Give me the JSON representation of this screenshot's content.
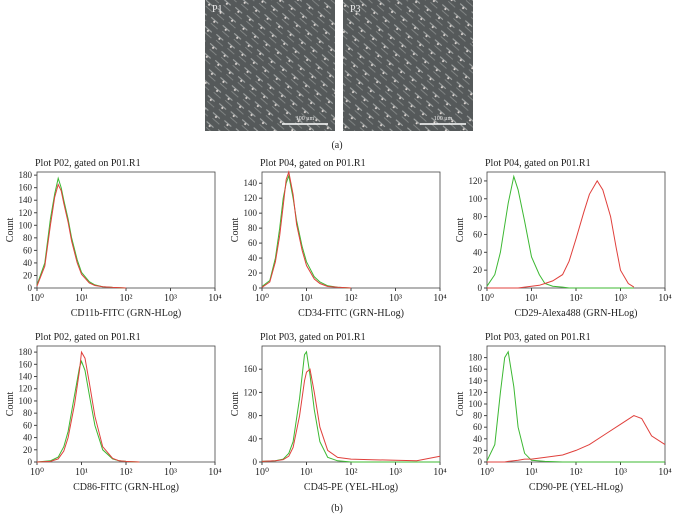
{
  "panel_a": {
    "images": [
      {
        "label": "P1",
        "scale": "100 μm"
      },
      {
        "label": "P3",
        "scale": "100 μm"
      }
    ],
    "caption": "(a)"
  },
  "panel_b": {
    "caption": "(b)"
  },
  "chart_data": [
    {
      "type": "line",
      "title": "Plot P02, gated on P01.R1",
      "x_label": "CD11b-FITC (GRN-HLog)",
      "y_label": "Count",
      "log_x": true,
      "x": [
        1,
        1.5,
        2,
        2.5,
        3,
        3.5,
        4,
        5,
        6,
        8,
        10,
        15,
        20,
        30,
        50,
        100
      ],
      "series": [
        {
          "color": "#3cb832",
          "values": [
            5,
            40,
            110,
            150,
            175,
            160,
            140,
            110,
            80,
            45,
            25,
            10,
            5,
            2,
            1,
            0
          ]
        },
        {
          "color": "#e0403c",
          "values": [
            3,
            35,
            100,
            145,
            165,
            155,
            135,
            105,
            75,
            40,
            22,
            8,
            4,
            2,
            1,
            0
          ]
        }
      ],
      "xlim": [
        1,
        10000
      ],
      "xticks": [
        {
          "value": 1,
          "label": "10⁰"
        },
        {
          "value": 10,
          "label": "10¹"
        },
        {
          "value": 100,
          "label": "10²"
        },
        {
          "value": 1000,
          "label": "10³"
        },
        {
          "value": 10000,
          "label": "10⁴"
        }
      ],
      "ylim": [
        0,
        185
      ],
      "yticks": [
        0,
        20,
        40,
        60,
        80,
        100,
        120,
        140,
        160,
        180
      ]
    },
    {
      "type": "line",
      "title": "Plot P04, gated on P01.R1",
      "x_label": "CD34-FITC (GRN-HLog)",
      "y_label": "Count",
      "log_x": true,
      "x": [
        1,
        1.5,
        2,
        2.5,
        3,
        3.5,
        4,
        5,
        6,
        8,
        10,
        15,
        20,
        30,
        50,
        100
      ],
      "series": [
        {
          "color": "#3cb832",
          "values": [
            2,
            10,
            40,
            80,
            120,
            140,
            150,
            120,
            90,
            55,
            35,
            15,
            8,
            3,
            1,
            0
          ]
        },
        {
          "color": "#e0403c",
          "values": [
            1,
            8,
            35,
            70,
            110,
            145,
            155,
            125,
            85,
            50,
            30,
            12,
            6,
            2,
            1,
            0
          ]
        }
      ],
      "xlim": [
        1,
        10000
      ],
      "xticks": [
        {
          "value": 1,
          "label": "10⁰"
        },
        {
          "value": 10,
          "label": "10¹"
        },
        {
          "value": 100,
          "label": "10²"
        },
        {
          "value": 1000,
          "label": "10³"
        },
        {
          "value": 10000,
          "label": "10⁴"
        }
      ],
      "ylim": [
        0,
        155
      ],
      "yticks": [
        0,
        20,
        40,
        60,
        80,
        100,
        120,
        140
      ]
    },
    {
      "type": "line",
      "title": "Plot P04, gated on P01.R1",
      "x_label": "CD29-Alexa488 (GRN-HLog)",
      "y_label": "Count",
      "log_x": true,
      "x": [
        1,
        1.5,
        2,
        3,
        4,
        5,
        7,
        10,
        15,
        20,
        30,
        50,
        70,
        100,
        150,
        200,
        300,
        400,
        600,
        800,
        1000,
        1500,
        2000
      ],
      "series": [
        {
          "color": "#3cb832",
          "values": [
            2,
            15,
            40,
            95,
            125,
            110,
            75,
            35,
            15,
            5,
            2,
            1,
            0,
            0,
            0,
            0,
            0,
            0,
            0,
            0,
            0,
            0,
            0
          ]
        },
        {
          "color": "#e0403c",
          "values": [
            0,
            0,
            0,
            0,
            0,
            0,
            1,
            2,
            3,
            5,
            8,
            15,
            30,
            55,
            85,
            105,
            120,
            110,
            80,
            45,
            20,
            5,
            1
          ]
        }
      ],
      "xlim": [
        1,
        10000
      ],
      "xticks": [
        {
          "value": 1,
          "label": "10⁰"
        },
        {
          "value": 10,
          "label": "10¹"
        },
        {
          "value": 100,
          "label": "10²"
        },
        {
          "value": 1000,
          "label": "10³"
        },
        {
          "value": 10000,
          "label": "10⁴"
        }
      ],
      "ylim": [
        0,
        130
      ],
      "yticks": [
        0,
        20,
        40,
        60,
        80,
        100,
        120
      ]
    },
    {
      "type": "line",
      "title": "Plot P02, gated on P01.R1",
      "x_label": "CD86-FITC (GRN-HLog)",
      "y_label": "Count",
      "log_x": true,
      "x": [
        1,
        2,
        3,
        4,
        5,
        7,
        9,
        10,
        12,
        15,
        20,
        30,
        50,
        70,
        100,
        200
      ],
      "series": [
        {
          "color": "#3cb832",
          "values": [
            0,
            2,
            8,
            25,
            50,
            110,
            155,
            165,
            150,
            110,
            60,
            20,
            5,
            2,
            1,
            0
          ]
        },
        {
          "color": "#e0403c",
          "values": [
            0,
            1,
            5,
            18,
            40,
            95,
            150,
            180,
            170,
            130,
            75,
            25,
            6,
            2,
            1,
            0
          ]
        }
      ],
      "xlim": [
        1,
        10000
      ],
      "xticks": [
        {
          "value": 1,
          "label": "10⁰"
        },
        {
          "value": 10,
          "label": "10¹"
        },
        {
          "value": 100,
          "label": "10²"
        },
        {
          "value": 1000,
          "label": "10³"
        },
        {
          "value": 10000,
          "label": "10⁴"
        }
      ],
      "ylim": [
        0,
        190
      ],
      "yticks": [
        0,
        20,
        40,
        60,
        80,
        100,
        120,
        140,
        160,
        180
      ]
    },
    {
      "type": "line",
      "title": "Plot P03, gated on P01.R1",
      "x_label": "CD45-PE (YEL-HLog)",
      "y_label": "Count",
      "log_x": true,
      "x": [
        1,
        2,
        3,
        4,
        5,
        7,
        9,
        10,
        12,
        15,
        20,
        30,
        50,
        100,
        300,
        1000,
        3000,
        10000
      ],
      "series": [
        {
          "color": "#3cb832",
          "values": [
            1,
            2,
            5,
            15,
            35,
            110,
            185,
            190,
            150,
            90,
            35,
            8,
            2,
            0,
            0,
            0,
            0,
            0
          ]
        },
        {
          "color": "#e0403c",
          "values": [
            1,
            2,
            4,
            10,
            25,
            80,
            140,
            155,
            160,
            120,
            60,
            20,
            8,
            5,
            4,
            3,
            2,
            10
          ]
        }
      ],
      "xlim": [
        1,
        10000
      ],
      "xticks": [
        {
          "value": 1,
          "label": "10⁰"
        },
        {
          "value": 10,
          "label": "10¹"
        },
        {
          "value": 100,
          "label": "10²"
        },
        {
          "value": 1000,
          "label": "10³"
        },
        {
          "value": 10000,
          "label": "10⁴"
        }
      ],
      "ylim": [
        0,
        200
      ],
      "yticks": [
        0,
        40,
        80,
        120,
        160
      ]
    },
    {
      "type": "line",
      "title": "Plot P03, gated on P01.R1",
      "x_label": "CD90-PE (YEL-HLog)",
      "y_label": "Count",
      "log_x": true,
      "x": [
        1,
        1.5,
        2,
        2.5,
        3,
        4,
        5,
        7,
        10,
        20,
        50,
        100,
        200,
        500,
        1000,
        2000,
        3000,
        5000,
        10000
      ],
      "series": [
        {
          "color": "#3cb832",
          "values": [
            2,
            30,
            120,
            180,
            190,
            130,
            60,
            15,
            3,
            1,
            0,
            0,
            0,
            0,
            0,
            0,
            0,
            0,
            0
          ]
        },
        {
          "color": "#e0403c",
          "values": [
            0,
            0,
            0,
            0,
            1,
            2,
            3,
            5,
            5,
            8,
            12,
            20,
            30,
            50,
            65,
            80,
            75,
            45,
            30
          ]
        }
      ],
      "xlim": [
        1,
        10000
      ],
      "xticks": [
        {
          "value": 1,
          "label": "10⁰"
        },
        {
          "value": 10,
          "label": "10¹"
        },
        {
          "value": 100,
          "label": "10²"
        },
        {
          "value": 1000,
          "label": "10³"
        },
        {
          "value": 10000,
          "label": "10⁴"
        }
      ],
      "ylim": [
        0,
        200
      ],
      "yticks": [
        0,
        20,
        40,
        60,
        80,
        100,
        120,
        140,
        160,
        180
      ]
    }
  ]
}
